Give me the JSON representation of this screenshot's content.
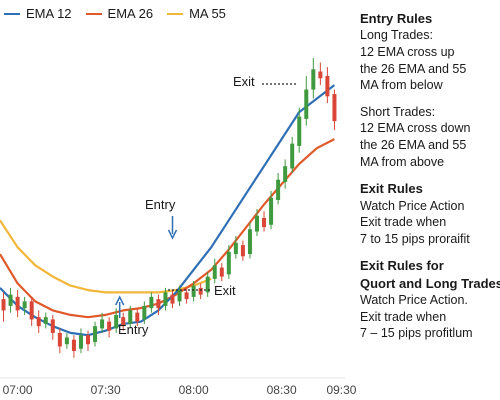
{
  "legend": [
    {
      "label": "EMA 12",
      "color": "#2f6fb5"
    },
    {
      "label": "EMA 26",
      "color": "#e0592a"
    },
    {
      "label": "MA 55",
      "color": "#f2b63a"
    }
  ],
  "annotations": {
    "exit_top": "Exit",
    "entry_mid": "Entry",
    "exit_low": "Exit",
    "entry_low": "Entry"
  },
  "rules": {
    "title": "Entry Rules",
    "long_heading": "Long Trades:",
    "long_lines": [
      "12 EMA cross up",
      "the 26 EMA and 55",
      "MA from below"
    ],
    "short_heading": "Short Trades:",
    "short_lines": [
      "12 EMA cross down",
      "the 26 EMA and 55",
      "MA from above"
    ],
    "exit_heading": "Exit Rules",
    "exit_lines": [
      "Watch Price Action",
      "Exit trade when",
      "7 to 15 pips proraifit"
    ],
    "exit2_heading_lines": [
      "Exit Rules for",
      "Quort and Long Trades"
    ],
    "exit2_lines": [
      "Watch Price Action.",
      "Exit trade when",
      "7 – 15 pips profitlum"
    ]
  },
  "chart_data": {
    "type": "line",
    "x_ticks": [
      "07:00",
      "07:30",
      "08:00",
      "08:30",
      "09:30"
    ],
    "series": [
      {
        "name": "EMA 12",
        "color": "#2f6fb5",
        "points": [
          [
            6.9,
            1.3
          ],
          [
            7.0,
            1.22
          ],
          [
            7.1,
            1.17
          ],
          [
            7.2,
            1.13
          ],
          [
            7.3,
            1.1
          ],
          [
            7.4,
            1.09
          ],
          [
            7.5,
            1.11
          ],
          [
            7.6,
            1.14
          ],
          [
            7.7,
            1.15
          ],
          [
            7.8,
            1.2
          ],
          [
            7.9,
            1.28
          ],
          [
            8.0,
            1.38
          ],
          [
            8.1,
            1.48
          ],
          [
            8.2,
            1.6
          ],
          [
            8.3,
            1.72
          ],
          [
            8.4,
            1.84
          ],
          [
            8.5,
            1.96
          ],
          [
            8.6,
            2.08
          ],
          [
            8.7,
            2.14
          ],
          [
            8.8,
            2.2
          ]
        ]
      },
      {
        "name": "EMA 26",
        "color": "#e0592a",
        "points": [
          [
            6.9,
            1.45
          ],
          [
            7.0,
            1.32
          ],
          [
            7.1,
            1.24
          ],
          [
            7.2,
            1.2
          ],
          [
            7.3,
            1.18
          ],
          [
            7.4,
            1.17
          ],
          [
            7.5,
            1.18
          ],
          [
            7.6,
            1.2
          ],
          [
            7.7,
            1.21
          ],
          [
            7.8,
            1.23
          ],
          [
            7.9,
            1.27
          ],
          [
            8.0,
            1.32
          ],
          [
            8.1,
            1.38
          ],
          [
            8.2,
            1.47
          ],
          [
            8.3,
            1.57
          ],
          [
            8.4,
            1.67
          ],
          [
            8.5,
            1.76
          ],
          [
            8.6,
            1.85
          ],
          [
            8.7,
            1.92
          ],
          [
            8.8,
            1.96
          ]
        ]
      },
      {
        "name": "MA 55",
        "color": "#f2b63a",
        "points": [
          [
            6.9,
            1.6
          ],
          [
            7.0,
            1.48
          ],
          [
            7.1,
            1.4
          ],
          [
            7.2,
            1.35
          ],
          [
            7.3,
            1.31
          ],
          [
            7.4,
            1.29
          ],
          [
            7.5,
            1.28
          ],
          [
            7.6,
            1.28
          ],
          [
            7.7,
            1.28
          ],
          [
            7.8,
            1.28
          ],
          [
            7.9,
            1.29
          ],
          [
            8.0,
            1.31
          ],
          [
            8.1,
            1.34
          ]
        ]
      }
    ],
    "candles": [
      {
        "x": 6.92,
        "o": 1.25,
        "c": 1.2,
        "h": 1.28,
        "l": 1.15
      },
      {
        "x": 6.96,
        "o": 1.22,
        "c": 1.27,
        "h": 1.3,
        "l": 1.19
      },
      {
        "x": 7.0,
        "o": 1.26,
        "c": 1.2,
        "h": 1.29,
        "l": 1.17
      },
      {
        "x": 7.04,
        "o": 1.21,
        "c": 1.24,
        "h": 1.26,
        "l": 1.18
      },
      {
        "x": 7.08,
        "o": 1.24,
        "c": 1.16,
        "h": 1.26,
        "l": 1.13
      },
      {
        "x": 7.12,
        "o": 1.17,
        "c": 1.13,
        "h": 1.2,
        "l": 1.1
      },
      {
        "x": 7.16,
        "o": 1.14,
        "c": 1.17,
        "h": 1.19,
        "l": 1.12
      },
      {
        "x": 7.2,
        "o": 1.16,
        "c": 1.1,
        "h": 1.18,
        "l": 1.07
      },
      {
        "x": 7.24,
        "o": 1.1,
        "c": 1.04,
        "h": 1.12,
        "l": 1.01
      },
      {
        "x": 7.28,
        "o": 1.05,
        "c": 1.08,
        "h": 1.1,
        "l": 1.03
      },
      {
        "x": 7.32,
        "o": 1.07,
        "c": 1.02,
        "h": 1.09,
        "l": 0.99
      },
      {
        "x": 7.36,
        "o": 1.03,
        "c": 1.09,
        "h": 1.12,
        "l": 1.01
      },
      {
        "x": 7.4,
        "o": 1.09,
        "c": 1.05,
        "h": 1.11,
        "l": 1.02
      },
      {
        "x": 7.44,
        "o": 1.06,
        "c": 1.13,
        "h": 1.15,
        "l": 1.04
      },
      {
        "x": 7.48,
        "o": 1.12,
        "c": 1.16,
        "h": 1.19,
        "l": 1.1
      },
      {
        "x": 7.52,
        "o": 1.15,
        "c": 1.11,
        "h": 1.17,
        "l": 1.08
      },
      {
        "x": 7.56,
        "o": 1.12,
        "c": 1.18,
        "h": 1.21,
        "l": 1.1
      },
      {
        "x": 7.6,
        "o": 1.17,
        "c": 1.13,
        "h": 1.19,
        "l": 1.11
      },
      {
        "x": 7.64,
        "o": 1.14,
        "c": 1.2,
        "h": 1.22,
        "l": 1.12
      },
      {
        "x": 7.68,
        "o": 1.19,
        "c": 1.15,
        "h": 1.21,
        "l": 1.13
      },
      {
        "x": 7.72,
        "o": 1.16,
        "c": 1.22,
        "h": 1.24,
        "l": 1.14
      },
      {
        "x": 7.76,
        "o": 1.21,
        "c": 1.26,
        "h": 1.28,
        "l": 1.19
      },
      {
        "x": 7.8,
        "o": 1.25,
        "c": 1.21,
        "h": 1.27,
        "l": 1.18
      },
      {
        "x": 7.84,
        "o": 1.22,
        "c": 1.28,
        "h": 1.3,
        "l": 1.2
      },
      {
        "x": 7.88,
        "o": 1.27,
        "c": 1.23,
        "h": 1.29,
        "l": 1.21
      },
      {
        "x": 7.92,
        "o": 1.24,
        "c": 1.29,
        "h": 1.31,
        "l": 1.22
      },
      {
        "x": 7.96,
        "o": 1.28,
        "c": 1.25,
        "h": 1.3,
        "l": 1.23
      },
      {
        "x": 8.0,
        "o": 1.26,
        "c": 1.31,
        "h": 1.33,
        "l": 1.24
      },
      {
        "x": 8.04,
        "o": 1.3,
        "c": 1.27,
        "h": 1.32,
        "l": 1.25
      },
      {
        "x": 8.08,
        "o": 1.28,
        "c": 1.35,
        "h": 1.37,
        "l": 1.26
      },
      {
        "x": 8.12,
        "o": 1.34,
        "c": 1.4,
        "h": 1.43,
        "l": 1.32
      },
      {
        "x": 8.16,
        "o": 1.39,
        "c": 1.35,
        "h": 1.41,
        "l": 1.33
      },
      {
        "x": 8.2,
        "o": 1.36,
        "c": 1.46,
        "h": 1.49,
        "l": 1.34
      },
      {
        "x": 8.24,
        "o": 1.45,
        "c": 1.5,
        "h": 1.53,
        "l": 1.43
      },
      {
        "x": 8.28,
        "o": 1.49,
        "c": 1.44,
        "h": 1.51,
        "l": 1.42
      },
      {
        "x": 8.32,
        "o": 1.45,
        "c": 1.56,
        "h": 1.59,
        "l": 1.43
      },
      {
        "x": 8.36,
        "o": 1.55,
        "c": 1.62,
        "h": 1.65,
        "l": 1.53
      },
      {
        "x": 8.4,
        "o": 1.61,
        "c": 1.57,
        "h": 1.64,
        "l": 1.55
      },
      {
        "x": 8.44,
        "o": 1.58,
        "c": 1.7,
        "h": 1.73,
        "l": 1.56
      },
      {
        "x": 8.48,
        "o": 1.69,
        "c": 1.78,
        "h": 1.81,
        "l": 1.67
      },
      {
        "x": 8.52,
        "o": 1.77,
        "c": 1.84,
        "h": 1.87,
        "l": 1.74
      },
      {
        "x": 8.56,
        "o": 1.83,
        "c": 1.94,
        "h": 1.97,
        "l": 1.81
      },
      {
        "x": 8.6,
        "o": 1.93,
        "c": 2.06,
        "h": 2.1,
        "l": 1.9
      },
      {
        "x": 8.64,
        "o": 2.05,
        "c": 2.18,
        "h": 2.24,
        "l": 2.02
      },
      {
        "x": 8.68,
        "o": 2.18,
        "c": 2.27,
        "h": 2.32,
        "l": 2.14
      },
      {
        "x": 8.72,
        "o": 2.26,
        "c": 2.23,
        "h": 2.3,
        "l": 2.2
      },
      {
        "x": 8.76,
        "o": 2.24,
        "c": 2.15,
        "h": 2.28,
        "l": 2.12
      },
      {
        "x": 8.8,
        "o": 2.16,
        "c": 2.04,
        "h": 2.18,
        "l": 2.0
      }
    ],
    "xlim": [
      6.9,
      8.86
    ],
    "ylim": [
      0.9,
      2.4
    ],
    "up_color": "#3f9a3f",
    "down_color": "#d94636",
    "markers": {
      "exit_top": {
        "x": 8.6,
        "y": 2.14
      },
      "entry_mid": {
        "x": 7.88,
        "y": 1.3
      },
      "exit_low": {
        "x": 7.96,
        "y": 1.19
      },
      "entry_low": {
        "x": 7.58,
        "y": 1.1
      }
    }
  }
}
